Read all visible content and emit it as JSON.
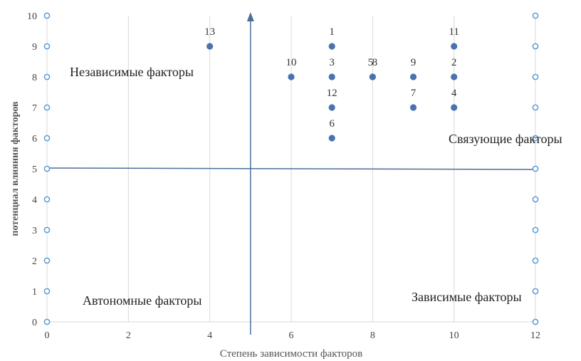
{
  "chart_data": {
    "type": "scatter",
    "xlabel": "Степень зависимости факторов",
    "ylabel": "потенциал влияния факторов",
    "xlim": [
      0,
      12
    ],
    "ylim": [
      0,
      10
    ],
    "x_ticks": [
      "0",
      "2",
      "4",
      "6",
      "8",
      "10",
      "12"
    ],
    "y_ticks": [
      "0",
      "1",
      "2",
      "3",
      "4",
      "5",
      "6",
      "7",
      "8",
      "9",
      "10"
    ],
    "grid": "vertical",
    "quadrant_labels": {
      "top_left": "Независимые факторы",
      "top_right": "Связующие факторы",
      "bottom_left": "Автономные факторы",
      "bottom_right": "Зависимые факторы"
    },
    "divider": {
      "x": 5,
      "y": 5
    },
    "points": [
      {
        "label": "13",
        "x": 4,
        "y": 9
      },
      {
        "label": "1",
        "x": 7,
        "y": 9
      },
      {
        "label": "11",
        "x": 10,
        "y": 9
      },
      {
        "label": "10",
        "x": 6,
        "y": 8
      },
      {
        "label": "3",
        "x": 7,
        "y": 8
      },
      {
        "label": "5",
        "x": 8,
        "y": 8
      },
      {
        "label": "8",
        "x": 8,
        "y": 8
      },
      {
        "label": "9",
        "x": 9,
        "y": 8
      },
      {
        "label": "2",
        "x": 10,
        "y": 8
      },
      {
        "label": "12",
        "x": 7,
        "y": 7
      },
      {
        "label": "7",
        "x": 9,
        "y": 7
      },
      {
        "label": "4",
        "x": 10,
        "y": 7
      },
      {
        "label": "6",
        "x": 7,
        "y": 6
      }
    ],
    "edge_markers": [
      0,
      1,
      2,
      3,
      4,
      5,
      6,
      7,
      8,
      9,
      10
    ],
    "colors": {
      "point": "#4a72b0",
      "axis": "#4a6f9a",
      "grid": "#d9d9d9",
      "marker_outline": "#5b9bd5"
    }
  }
}
